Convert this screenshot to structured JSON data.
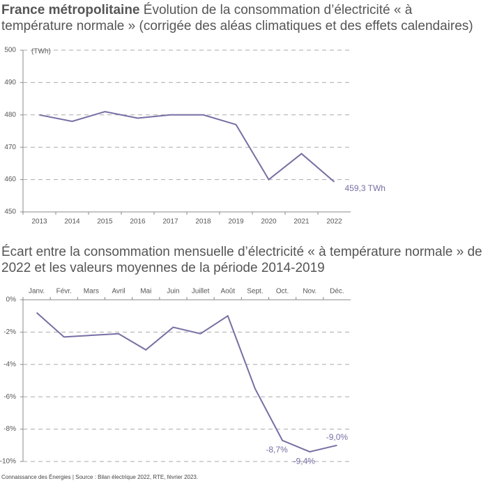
{
  "chart_data": [
    {
      "type": "line",
      "title": "France métropolitaine",
      "subtitle": "Évolution de la consommation d’électricité « à température normale » (corrigée des aléas climatiques et des effets calendaires)",
      "y_unit": "(TWh)",
      "categories": [
        "2013",
        "2014",
        "2015",
        "2016",
        "2017",
        "2018",
        "2019",
        "2020",
        "2021",
        "2022"
      ],
      "values": [
        480,
        478,
        481,
        479,
        480,
        480,
        477,
        460,
        468,
        459.3
      ],
      "value_labels": [
        null,
        null,
        null,
        null,
        null,
        null,
        null,
        null,
        null,
        "459,3 TWh"
      ],
      "color": "#776ea3",
      "ylim": [
        450,
        500
      ],
      "yticks": [
        450,
        460,
        470,
        480,
        490,
        500
      ],
      "grid": true,
      "category_axis": "bottom"
    },
    {
      "type": "line",
      "title": "Écart entre la consommation mensuelle d’électricité « à température normale » de 2022 et les valeurs moyennes de la période 2014-2019",
      "categories": [
        "Janv.",
        "Févr.",
        "Mars",
        "Avril",
        "Mai",
        "Juin",
        "Juillet",
        "Août",
        "Sept.",
        "Oct.",
        "Nov.",
        "Déc."
      ],
      "values": [
        -0.8,
        -2.3,
        -2.2,
        -2.1,
        -3.1,
        -1.7,
        -2.1,
        -1.0,
        -5.5,
        -8.7,
        -9.4,
        -9.0
      ],
      "value_labels": [
        null,
        null,
        null,
        null,
        null,
        null,
        null,
        null,
        null,
        "-8,7%",
        "-9,4%",
        "-9,0%"
      ],
      "color": "#776ea3",
      "ylim": [
        -10,
        0
      ],
      "yticks": [
        {
          "value": -10,
          "label": "-10%"
        },
        {
          "value": -8,
          "label": "-8%"
        },
        {
          "value": -6,
          "label": "-6%"
        },
        {
          "value": -4,
          "label": "-4%"
        },
        {
          "value": -2,
          "label": "-2%"
        },
        {
          "value": 0,
          "label": "0%"
        }
      ],
      "grid": true,
      "category_axis": "top"
    }
  ],
  "footer": "Connaissance des Énergies | Source : Bilan électrique 2022, RTE, février 2023."
}
